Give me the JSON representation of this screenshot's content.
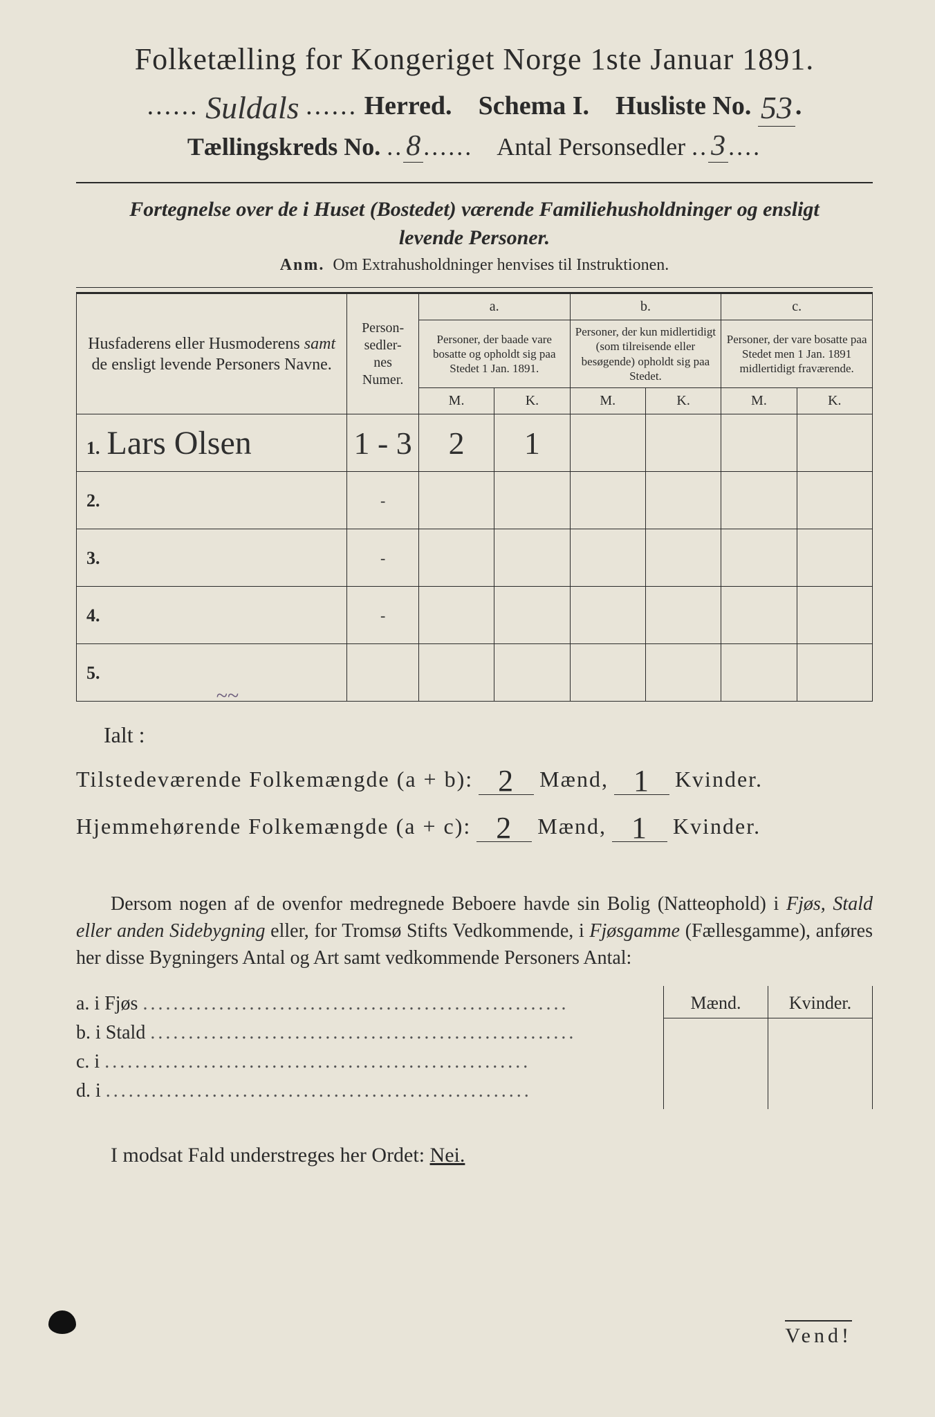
{
  "title": "Folketælling for Kongeriget Norge 1ste Januar 1891.",
  "header": {
    "herred_value": "Suldals",
    "herred_label": "Herred.",
    "schema_label": "Schema I.",
    "husliste_label": "Husliste No.",
    "husliste_value": "53",
    "kreds_label": "Tællingskreds No.",
    "kreds_value": "8",
    "antal_label": "Antal Personsedler",
    "antal_value": "3"
  },
  "subtitle_line1": "Fortegnelse over de i Huset (Bostedet) værende Familiehusholdninger og ensligt",
  "subtitle_line2": "levende Personer.",
  "anm_label": "Anm.",
  "anm_text": "Om Extrahusholdninger henvises til Instruktionen.",
  "table": {
    "col_names": "Husfaderens eller Husmoderens samt de ensligt levende Personers Navne.",
    "col_pnum": "Person-\nsedler-\nnes\nNumer.",
    "col_a_top": "a.",
    "col_a": "Personer, der baade vare bosatte og opholdt sig paa Stedet 1 Jan. 1891.",
    "col_b_top": "b.",
    "col_b": "Personer, der kun midlertidigt (som tilreisende eller besøgende) opholdt sig paa Stedet.",
    "col_c_top": "c.",
    "col_c": "Personer, der vare bosatte paa Stedet men 1 Jan. 1891 midlertidigt fraværende.",
    "mk_m": "M.",
    "mk_k": "K.",
    "rows": [
      {
        "n": "1.",
        "name": "Lars Olsen",
        "pnum": "1 - 3",
        "a_m": "2",
        "a_k": "1",
        "b_m": "",
        "b_k": "",
        "c_m": "",
        "c_k": ""
      },
      {
        "n": "2.",
        "name": "",
        "pnum": "-",
        "a_m": "",
        "a_k": "",
        "b_m": "",
        "b_k": "",
        "c_m": "",
        "c_k": ""
      },
      {
        "n": "3.",
        "name": "",
        "pnum": "-",
        "a_m": "",
        "a_k": "",
        "b_m": "",
        "b_k": "",
        "c_m": "",
        "c_k": ""
      },
      {
        "n": "4.",
        "name": "",
        "pnum": "-",
        "a_m": "",
        "a_k": "",
        "b_m": "",
        "b_k": "",
        "c_m": "",
        "c_k": ""
      },
      {
        "n": "5.",
        "name": "",
        "pnum": "",
        "a_m": "",
        "a_k": "",
        "b_m": "",
        "b_k": "",
        "c_m": "",
        "c_k": ""
      }
    ]
  },
  "ialt": {
    "label": "Ialt :",
    "row1_label": "Tilstedeværende Folkemængde (a + b):",
    "row2_label": "Hjemmehørende Folkemængde (a + c):",
    "maend": "Mænd,",
    "kvinder": "Kvinder.",
    "r1_m": "2",
    "r1_k": "1",
    "r2_m": "2",
    "r2_k": "1"
  },
  "para": "Dersom nogen af de ovenfor medregnede Beboere havde sin Bolig (Natteophold) i Fjøs, Stald eller anden Sidebygning eller, for Tromsø Stifts Vedkommende, i Fjøsgamme (Fællesgamme), anføres her disse Bygningers Antal og Art samt vedkommende Personers Antal:",
  "btable": {
    "head_m": "Mænd.",
    "head_k": "Kvinder.",
    "a": "a.  i      Fjøs",
    "b": "b.  i      Stald",
    "c": "c.  i",
    "d": "d.  i"
  },
  "nei_line": "I modsat Fald understreges her Ordet:",
  "nei_word": "Nei.",
  "vend": "Vend!",
  "colors": {
    "paper": "#e8e4d8",
    "ink": "#2a2a2a",
    "hand": "#333333"
  }
}
